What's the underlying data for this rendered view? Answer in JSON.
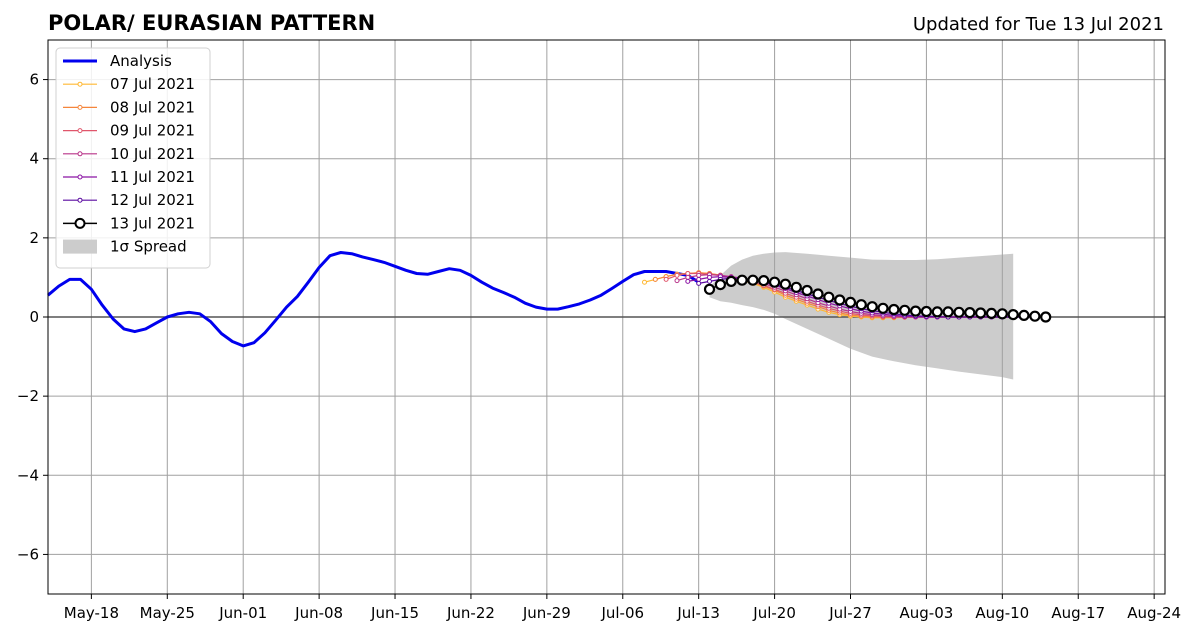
{
  "chart_data": {
    "type": "line",
    "title": "POLAR/ EURASIAN  PATTERN",
    "subtitle": "Updated for Tue 13 Jul 2021",
    "ylim": [
      -7,
      7
    ],
    "y_ticks": [
      -6,
      -4,
      -2,
      0,
      2,
      4,
      6
    ],
    "y_tick_labels": [
      "−6",
      "−4",
      "−2",
      "0",
      "2",
      "4",
      "6"
    ],
    "xlim": [
      "2021-05-14",
      "2021-08-25"
    ],
    "x_ticks": [
      "2021-05-18",
      "2021-05-25",
      "2021-06-01",
      "2021-06-08",
      "2021-06-15",
      "2021-06-22",
      "2021-06-29",
      "2021-07-06",
      "2021-07-13",
      "2021-07-20",
      "2021-07-27",
      "2021-08-03",
      "2021-08-10",
      "2021-08-17",
      "2021-08-24"
    ],
    "x_tick_labels": [
      "May-18",
      "May-25",
      "Jun-01",
      "Jun-08",
      "Jun-15",
      "Jun-22",
      "Jun-29",
      "Jul-06",
      "Jul-13",
      "Jul-20",
      "Jul-27",
      "Aug-03",
      "Aug-10",
      "Aug-17",
      "Aug-24"
    ],
    "grid": true,
    "legend_position": "top-left",
    "analysis": {
      "name": "Analysis",
      "color": "#0000ee",
      "x": [
        "2021-05-14",
        "2021-05-15",
        "2021-05-16",
        "2021-05-17",
        "2021-05-18",
        "2021-05-19",
        "2021-05-20",
        "2021-05-21",
        "2021-05-22",
        "2021-05-23",
        "2021-05-24",
        "2021-05-25",
        "2021-05-26",
        "2021-05-27",
        "2021-05-28",
        "2021-05-29",
        "2021-05-30",
        "2021-05-31",
        "2021-06-01",
        "2021-06-02",
        "2021-06-03",
        "2021-06-04",
        "2021-06-05",
        "2021-06-06",
        "2021-06-07",
        "2021-06-08",
        "2021-06-09",
        "2021-06-10",
        "2021-06-11",
        "2021-06-12",
        "2021-06-13",
        "2021-06-14",
        "2021-06-15",
        "2021-06-16",
        "2021-06-17",
        "2021-06-18",
        "2021-06-19",
        "2021-06-20",
        "2021-06-21",
        "2021-06-22",
        "2021-06-23",
        "2021-06-24",
        "2021-06-25",
        "2021-06-26",
        "2021-06-27",
        "2021-06-28",
        "2021-06-29",
        "2021-06-30",
        "2021-07-01",
        "2021-07-02",
        "2021-07-03",
        "2021-07-04",
        "2021-07-05",
        "2021-07-06",
        "2021-07-07",
        "2021-07-08",
        "2021-07-09",
        "2021-07-10",
        "2021-07-11",
        "2021-07-12",
        "2021-07-13"
      ],
      "values": [
        0.55,
        0.78,
        0.95,
        0.95,
        0.7,
        0.3,
        -0.05,
        -0.3,
        -0.37,
        -0.3,
        -0.15,
        0.0,
        0.08,
        0.12,
        0.08,
        -0.12,
        -0.42,
        -0.62,
        -0.73,
        -0.65,
        -0.4,
        -0.08,
        0.25,
        0.52,
        0.88,
        1.25,
        1.55,
        1.63,
        1.6,
        1.52,
        1.45,
        1.38,
        1.28,
        1.18,
        1.1,
        1.08,
        1.15,
        1.22,
        1.18,
        1.05,
        0.88,
        0.73,
        0.62,
        0.5,
        0.35,
        0.25,
        0.2,
        0.2,
        0.26,
        0.33,
        0.43,
        0.55,
        0.72,
        0.9,
        1.07,
        1.15,
        1.15,
        1.15,
        1.1,
        1.05,
        0.88
      ]
    },
    "spread": {
      "name": "1σ Spread",
      "color": "#cccccc",
      "x": [
        "2021-07-14",
        "2021-07-15",
        "2021-07-16",
        "2021-07-17",
        "2021-07-18",
        "2021-07-19",
        "2021-07-20",
        "2021-07-21",
        "2021-07-23",
        "2021-07-25",
        "2021-07-27",
        "2021-07-29",
        "2021-07-31",
        "2021-08-02",
        "2021-08-04",
        "2021-08-06",
        "2021-08-08",
        "2021-08-10",
        "2021-08-11"
      ],
      "upper": [
        0.75,
        1.05,
        1.3,
        1.45,
        1.55,
        1.6,
        1.63,
        1.64,
        1.6,
        1.55,
        1.5,
        1.45,
        1.44,
        1.44,
        1.46,
        1.5,
        1.54,
        1.58,
        1.6
      ],
      "lower": [
        0.5,
        0.4,
        0.36,
        0.3,
        0.25,
        0.18,
        0.08,
        -0.05,
        -0.3,
        -0.55,
        -0.8,
        -1.0,
        -1.12,
        -1.22,
        -1.3,
        -1.38,
        -1.45,
        -1.52,
        -1.58
      ]
    },
    "forecasts": [
      {
        "name": "07 Jul 2021",
        "color": "#ffb833",
        "x_start": "2021-07-08",
        "values": [
          0.88,
          0.95,
          1.02,
          1.08,
          1.1,
          1.12,
          1.1,
          1.05,
          1.0,
          0.92,
          0.85,
          0.75,
          0.63,
          0.5,
          0.4,
          0.3,
          0.2,
          0.12,
          0.06,
          0.02,
          0.0,
          -0.02,
          -0.02,
          -0.02,
          -0.01,
          0.0,
          0.0,
          0.0,
          0.0,
          0.0,
          0.0,
          0.0
        ]
      },
      {
        "name": "08 Jul 2021",
        "color": "#f5863c",
        "x_start": "2021-07-09",
        "values": [
          0.95,
          1.02,
          1.08,
          1.1,
          1.12,
          1.1,
          1.06,
          1.0,
          0.95,
          0.88,
          0.78,
          0.68,
          0.55,
          0.45,
          0.35,
          0.26,
          0.17,
          0.1,
          0.05,
          0.02,
          0.0,
          -0.01,
          -0.01,
          0.0,
          0.0,
          0.0,
          0.0,
          0.0,
          0.0,
          0.0,
          0.0,
          0.0
        ]
      },
      {
        "name": "09 Jul 2021",
        "color": "#e0566b",
        "x_start": "2021-07-10",
        "values": [
          0.95,
          1.05,
          1.1,
          1.1,
          1.08,
          1.05,
          1.0,
          0.95,
          0.88,
          0.8,
          0.7,
          0.6,
          0.5,
          0.4,
          0.3,
          0.22,
          0.15,
          0.09,
          0.05,
          0.03,
          0.01,
          0.0,
          0.0,
          0.0,
          0.0,
          0.0,
          0.0,
          0.0,
          0.0,
          0.0,
          0.0,
          0.0
        ]
      },
      {
        "name": "10 Jul 2021",
        "color": "#b83489",
        "x_start": "2021-07-11",
        "values": [
          0.92,
          1.0,
          1.05,
          1.07,
          1.05,
          1.02,
          0.98,
          0.92,
          0.85,
          0.75,
          0.66,
          0.56,
          0.46,
          0.36,
          0.28,
          0.2,
          0.14,
          0.09,
          0.06,
          0.03,
          0.01,
          0.0,
          0.0,
          0.0,
          0.0,
          0.0,
          0.0,
          0.0,
          0.0,
          0.0,
          0.0,
          0.0
        ]
      },
      {
        "name": "11 Jul 2021",
        "color": "#8b14a5",
        "x_start": "2021-07-12",
        "values": [
          0.9,
          0.95,
          1.0,
          1.02,
          1.0,
          0.97,
          0.93,
          0.88,
          0.8,
          0.72,
          0.62,
          0.53,
          0.44,
          0.35,
          0.28,
          0.21,
          0.15,
          0.1,
          0.07,
          0.04,
          0.02,
          0.01,
          0.0,
          0.0,
          0.0,
          0.0,
          0.0,
          0.0,
          0.0,
          0.0,
          0.0,
          0.0
        ]
      },
      {
        "name": "12 Jul 2021",
        "color": "#5a0aa0",
        "x_start": "2021-07-13",
        "values": [
          0.85,
          0.9,
          0.95,
          0.98,
          0.97,
          0.93,
          0.88,
          0.82,
          0.75,
          0.67,
          0.58,
          0.5,
          0.42,
          0.34,
          0.27,
          0.21,
          0.16,
          0.12,
          0.08,
          0.05,
          0.03,
          0.02,
          0.01,
          0.0,
          0.0,
          0.0,
          0.0,
          0.0,
          0.0,
          0.0,
          0.0,
          0.0
        ]
      },
      {
        "name": "13 Jul 2021",
        "color": "#000000",
        "x_start": "2021-07-14",
        "values": [
          0.7,
          0.82,
          0.9,
          0.93,
          0.93,
          0.92,
          0.88,
          0.83,
          0.75,
          0.67,
          0.58,
          0.5,
          0.43,
          0.37,
          0.31,
          0.26,
          0.22,
          0.19,
          0.17,
          0.15,
          0.14,
          0.13,
          0.13,
          0.12,
          0.11,
          0.1,
          0.09,
          0.08,
          0.06,
          0.04,
          0.02,
          0.0
        ]
      }
    ]
  }
}
